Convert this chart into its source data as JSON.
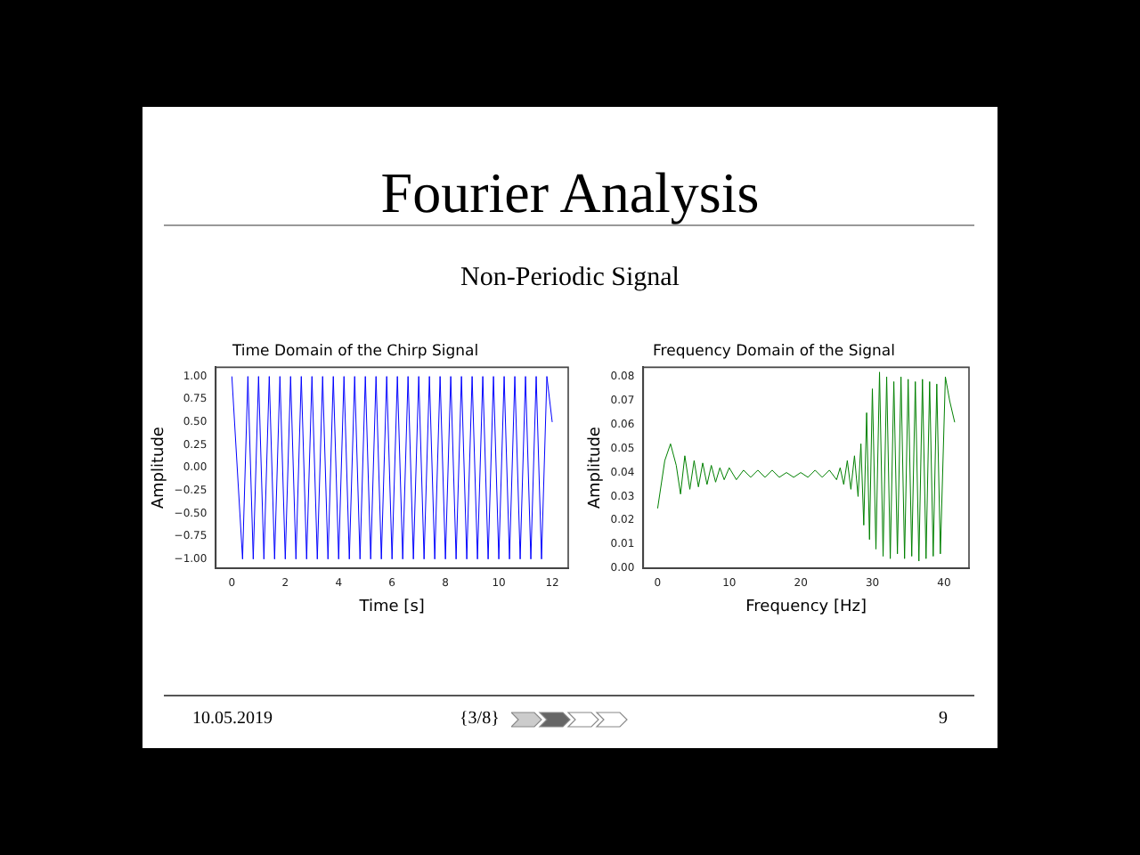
{
  "chart_data": [
    {
      "type": "other",
      "title": "Fourier Analysis",
      "subtitle": "Non-Periodic Signal",
      "annotations": [
        "10.05.2019",
        "{3/8}",
        "9"
      ]
    },
    {
      "type": "line",
      "title": "Time Domain of the Chirp Signal",
      "xlabel": "Time [s]",
      "ylabel": "Amplitude",
      "grid": false,
      "legend": false,
      "marker": "none",
      "line_style": "solid",
      "xlim": [
        -0.6,
        12.6
      ],
      "xticks": [
        0,
        2,
        4,
        6,
        8,
        10,
        12
      ],
      "ylim": [
        -1.1,
        1.1
      ],
      "yticks": [
        {
          "value": -1,
          "label": "−1.00"
        },
        {
          "value": -0.75,
          "label": "−0.75"
        },
        {
          "value": -0.5,
          "label": "−0.50"
        },
        {
          "value": -0.25,
          "label": "−0.25"
        },
        {
          "value": 0,
          "label": "0.00"
        },
        {
          "value": 0.25,
          "label": "0.25"
        },
        {
          "value": 0.5,
          "label": "0.50"
        },
        {
          "value": 0.75,
          "label": "0.75"
        },
        {
          "value": 1,
          "label": "1.00"
        }
      ],
      "series": [
        {
          "color": "#0000ff",
          "x": [
            0,
            0.4,
            0.6,
            0.8,
            1,
            1.2,
            1.4,
            1.6,
            1.8,
            2,
            2.2,
            2.4,
            2.6,
            2.8,
            3,
            3.2,
            3.4,
            3.6,
            3.8,
            4,
            4.2,
            4.4,
            4.6,
            4.8,
            5,
            5.2,
            5.4,
            5.6,
            5.8,
            6,
            6.2,
            6.4,
            6.6,
            6.8,
            7,
            7.2,
            7.4,
            7.6,
            7.8,
            8,
            8.2,
            8.4,
            8.6,
            8.8,
            9,
            9.2,
            9.4,
            9.6,
            9.8,
            10,
            10.2,
            10.4,
            10.6,
            10.8,
            11,
            11.2,
            11.4,
            11.6,
            11.8,
            12
          ],
          "values": [
            1,
            -1,
            1,
            -1,
            1,
            -1,
            1,
            -1,
            1,
            -1,
            1,
            -1,
            1,
            -1,
            1,
            -1,
            1,
            -1,
            1,
            -1,
            1,
            -1,
            1,
            -1,
            1,
            -1,
            1,
            -1,
            1,
            -1,
            1,
            -1,
            1,
            -1,
            1,
            -1,
            1,
            -1,
            1,
            -1,
            1,
            -1,
            1,
            -1,
            1,
            -1,
            1,
            -1,
            1,
            -1,
            1,
            -1,
            1,
            -1,
            1,
            -1,
            1,
            -1,
            1,
            0.5
          ]
        }
      ]
    },
    {
      "type": "line",
      "title": "Frequency Domain of the Signal",
      "xlabel": "Frequency [Hz]",
      "ylabel": "Amplitude",
      "grid": false,
      "legend": false,
      "marker": "none",
      "line_style": "solid",
      "xlim": [
        -2,
        43.5
      ],
      "xticks": [
        0,
        10,
        20,
        30,
        40
      ],
      "ylim": [
        0,
        0.084
      ],
      "yticks": [
        {
          "value": 0,
          "label": "0.00"
        },
        {
          "value": 0.01,
          "label": "0.01"
        },
        {
          "value": 0.02,
          "label": "0.02"
        },
        {
          "value": 0.03,
          "label": "0.03"
        },
        {
          "value": 0.04,
          "label": "0.04"
        },
        {
          "value": 0.05,
          "label": "0.05"
        },
        {
          "value": 0.06,
          "label": "0.06"
        },
        {
          "value": 0.07,
          "label": "0.07"
        },
        {
          "value": 0.08,
          "label": "0.08"
        }
      ],
      "series": [
        {
          "color": "#008000",
          "x": [
            0,
            1,
            1.8,
            2.6,
            3.2,
            3.8,
            4.5,
            5.1,
            5.7,
            6.3,
            6.9,
            7.5,
            8.1,
            8.7,
            9.3,
            10,
            11,
            12,
            13,
            14,
            15,
            16,
            17,
            18,
            19,
            20,
            21,
            22,
            23,
            24,
            25,
            25.5,
            26,
            26.5,
            27,
            27.5,
            28,
            28.4,
            28.8,
            29.2,
            29.6,
            30,
            30.5,
            31,
            31.5,
            32,
            32.5,
            33,
            33.5,
            34,
            34.5,
            35,
            35.5,
            36,
            36.5,
            37,
            37.5,
            38,
            38.5,
            39,
            39.5,
            40.2,
            40.8,
            41.5
          ],
          "values": [
            0.025,
            0.045,
            0.052,
            0.043,
            0.031,
            0.047,
            0.033,
            0.045,
            0.034,
            0.044,
            0.035,
            0.043,
            0.036,
            0.042,
            0.037,
            0.042,
            0.037,
            0.041,
            0.038,
            0.041,
            0.038,
            0.041,
            0.038,
            0.04,
            0.038,
            0.04,
            0.038,
            0.041,
            0.038,
            0.041,
            0.037,
            0.042,
            0.035,
            0.045,
            0.033,
            0.047,
            0.03,
            0.052,
            0.018,
            0.065,
            0.012,
            0.075,
            0.008,
            0.082,
            0.005,
            0.08,
            0.004,
            0.078,
            0.006,
            0.08,
            0.004,
            0.079,
            0.005,
            0.078,
            0.003,
            0.079,
            0.004,
            0.078,
            0.005,
            0.077,
            0.006,
            0.08,
            0.07,
            0.061
          ]
        }
      ]
    }
  ]
}
